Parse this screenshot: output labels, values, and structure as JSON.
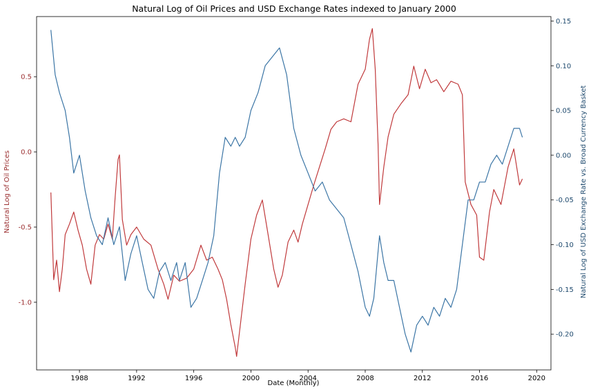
{
  "chart_data": {
    "type": "line",
    "title": "Natural Log of Oil Prices and USD Exchange Rates indexed to January 2000",
    "xlabel": "Date (Monthly)",
    "ylabel_left": "Natural Log of Oil Prices",
    "ylabel_right": "Natural Log of USD Exchange Rate vs. Broad Currency Basket",
    "xlim": [
      1985.0,
      2021.0
    ],
    "ylim_left": [
      -1.45,
      0.9
    ],
    "ylim_right": [
      -0.24,
      0.155
    ],
    "x_ticks": [
      "1988",
      "1992",
      "1996",
      "2000",
      "2004",
      "2008",
      "2012",
      "2016",
      "2020"
    ],
    "y_ticks_left": [
      "-1.0",
      "-0.5",
      "0.0",
      "0.5"
    ],
    "y_ticks_right": [
      "-0.20",
      "-0.15",
      "-0.10",
      "-0.05",
      "0.00",
      "0.05",
      "0.10",
      "0.15"
    ],
    "grid": false,
    "colors": {
      "oil": "#c0393b",
      "usd": "#3b75a5",
      "right_axis_text": "#1f4a6e"
    },
    "series": [
      {
        "axis": "left",
        "color": "#c0393b",
        "x": [
          1986.0,
          1986.2,
          1986.4,
          1986.6,
          1986.8,
          1987.0,
          1987.3,
          1987.6,
          1987.9,
          1988.2,
          1988.5,
          1988.8,
          1989.1,
          1989.4,
          1989.7,
          1990.0,
          1990.3,
          1990.5,
          1990.7,
          1990.8,
          1991.0,
          1991.3,
          1991.6,
          1992.0,
          1992.5,
          1993.0,
          1993.5,
          1993.9,
          1994.2,
          1994.6,
          1995.0,
          1995.5,
          1996.0,
          1996.5,
          1996.9,
          1997.3,
          1997.7,
          1998.0,
          1998.3,
          1998.6,
          1998.9,
          1999.0,
          1999.3,
          1999.6,
          2000.0,
          2000.4,
          2000.8,
          2001.2,
          2001.6,
          2001.9,
          2002.2,
          2002.6,
          2003.0,
          2003.3,
          2003.6,
          2004.0,
          2004.4,
          2004.8,
          2005.2,
          2005.6,
          2006.0,
          2006.5,
          2007.0,
          2007.5,
          2008.0,
          2008.3,
          2008.5,
          2008.7,
          2008.9,
          2009.0,
          2009.3,
          2009.6,
          2010.0,
          2010.5,
          2011.0,
          2011.4,
          2011.8,
          2012.2,
          2012.6,
          2013.0,
          2013.5,
          2014.0,
          2014.5,
          2014.8,
          2015.0,
          2015.4,
          2015.8,
          2016.0,
          2016.3,
          2016.7,
          2017.0,
          2017.5,
          2018.0,
          2018.4,
          2018.8,
          2019.0
        ],
        "values": [
          -0.27,
          -0.85,
          -0.72,
          -0.93,
          -0.78,
          -0.55,
          -0.48,
          -0.4,
          -0.52,
          -0.62,
          -0.78,
          -0.88,
          -0.62,
          -0.55,
          -0.58,
          -0.48,
          -0.58,
          -0.3,
          -0.05,
          -0.02,
          -0.45,
          -0.62,
          -0.55,
          -0.5,
          -0.58,
          -0.62,
          -0.78,
          -0.88,
          -0.98,
          -0.82,
          -0.86,
          -0.84,
          -0.78,
          -0.62,
          -0.72,
          -0.7,
          -0.78,
          -0.85,
          -0.98,
          -1.15,
          -1.3,
          -1.36,
          -1.12,
          -0.88,
          -0.58,
          -0.42,
          -0.32,
          -0.55,
          -0.78,
          -0.9,
          -0.82,
          -0.6,
          -0.52,
          -0.6,
          -0.48,
          -0.35,
          -0.22,
          -0.1,
          0.02,
          0.15,
          0.2,
          0.22,
          0.2,
          0.45,
          0.55,
          0.75,
          0.82,
          0.55,
          0.05,
          -0.35,
          -0.1,
          0.1,
          0.25,
          0.32,
          0.38,
          0.57,
          0.42,
          0.55,
          0.46,
          0.48,
          0.4,
          0.47,
          0.45,
          0.38,
          -0.2,
          -0.35,
          -0.42,
          -0.7,
          -0.72,
          -0.4,
          -0.25,
          -0.35,
          -0.1,
          0.02,
          -0.22,
          -0.18
        ]
      },
      {
        "axis": "right",
        "color": "#3b75a5",
        "x": [
          1986.0,
          1986.3,
          1986.6,
          1987.0,
          1987.3,
          1987.6,
          1988.0,
          1988.4,
          1988.8,
          1989.2,
          1989.6,
          1990.0,
          1990.4,
          1990.8,
          1991.2,
          1991.6,
          1992.0,
          1992.4,
          1992.8,
          1993.2,
          1993.6,
          1994.0,
          1994.4,
          1994.8,
          1995.0,
          1995.4,
          1995.8,
          1996.2,
          1996.6,
          1997.0,
          1997.4,
          1997.8,
          1998.2,
          1998.6,
          1998.9,
          1999.2,
          1999.6,
          2000.0,
          2000.5,
          2001.0,
          2001.5,
          2002.0,
          2002.5,
          2003.0,
          2003.5,
          2004.0,
          2004.5,
          2005.0,
          2005.5,
          2006.0,
          2006.5,
          2007.0,
          2007.5,
          2008.0,
          2008.3,
          2008.6,
          2009.0,
          2009.3,
          2009.6,
          2010.0,
          2010.4,
          2010.8,
          2011.2,
          2011.6,
          2012.0,
          2012.4,
          2012.8,
          2013.2,
          2013.6,
          2014.0,
          2014.4,
          2014.8,
          2015.2,
          2015.6,
          2016.0,
          2016.4,
          2016.8,
          2017.2,
          2017.6,
          2018.0,
          2018.4,
          2018.8,
          2019.0
        ],
        "values": [
          0.14,
          0.09,
          0.07,
          0.05,
          0.02,
          -0.02,
          0.0,
          -0.04,
          -0.07,
          -0.09,
          -0.1,
          -0.07,
          -0.1,
          -0.08,
          -0.14,
          -0.11,
          -0.09,
          -0.12,
          -0.15,
          -0.16,
          -0.13,
          -0.12,
          -0.14,
          -0.12,
          -0.14,
          -0.12,
          -0.17,
          -0.16,
          -0.14,
          -0.12,
          -0.09,
          -0.02,
          0.02,
          0.01,
          0.02,
          0.01,
          0.02,
          0.05,
          0.07,
          0.1,
          0.11,
          0.12,
          0.09,
          0.03,
          0.0,
          -0.02,
          -0.04,
          -0.03,
          -0.05,
          -0.06,
          -0.07,
          -0.1,
          -0.13,
          -0.17,
          -0.18,
          -0.16,
          -0.09,
          -0.12,
          -0.14,
          -0.14,
          -0.17,
          -0.2,
          -0.22,
          -0.19,
          -0.18,
          -0.19,
          -0.17,
          -0.18,
          -0.16,
          -0.17,
          -0.15,
          -0.1,
          -0.05,
          -0.05,
          -0.03,
          -0.03,
          -0.01,
          0.0,
          -0.01,
          0.01,
          0.03,
          0.03,
          0.02
        ]
      }
    ]
  }
}
